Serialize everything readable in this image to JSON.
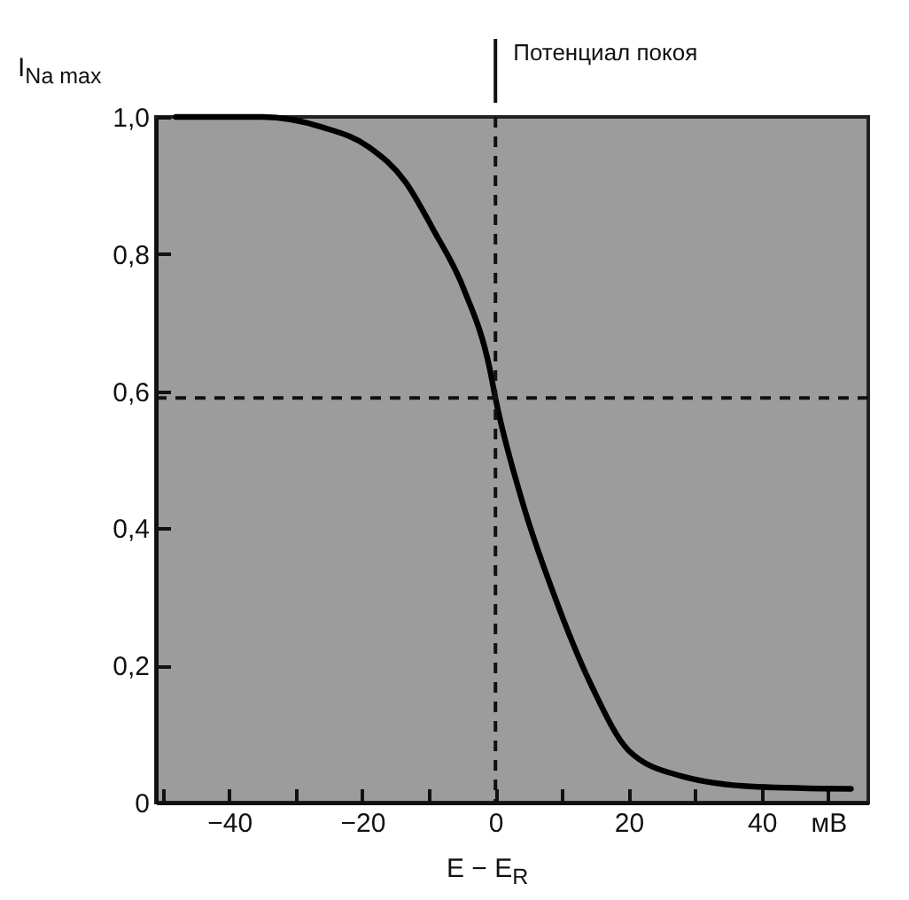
{
  "chart_data": {
    "type": "line",
    "xlabel": "E − E$_{R}$",
    "ylabel": "I$_{Na max}$",
    "x": [
      -48,
      -35,
      -26,
      -19,
      -13.5,
      -9.3,
      -4.8,
      -0.8,
      0,
      4,
      9.3,
      14.6,
      20,
      27.8,
      39.4,
      53.4
    ],
    "series": [
      {
        "color": "#000000",
        "values": [
          1.0,
          1.0,
          0.985,
          0.956,
          0.905,
          0.835,
          0.75,
          0.63,
          0.59,
          0.44,
          0.29,
          0.167,
          0.076,
          0.039,
          0.023,
          0.02
        ]
      }
    ],
    "xlim": [
      -51,
      56
    ],
    "ylim": [
      0,
      1.0
    ],
    "xticks": [
      {
        "value": -50,
        "label": null
      },
      {
        "value": -40,
        "label": "−40"
      },
      {
        "value": -30,
        "label": null
      },
      {
        "value": -20,
        "label": "−20"
      },
      {
        "value": -10,
        "label": null
      },
      0,
      {
        "value": 10,
        "label": null
      },
      20,
      {
        "value": 30,
        "label": null
      },
      40,
      {
        "value": 50,
        "label": "мВ"
      }
    ],
    "yticks": [
      0,
      {
        "value": 0.2,
        "label": "0,2"
      },
      {
        "value": 0.4,
        "label": "0,4"
      },
      {
        "value": 0.6,
        "label": "0,6"
      },
      {
        "value": 0.8,
        "label": "0,8"
      },
      {
        "value": 1.0,
        "label": "1,0"
      }
    ],
    "ref_lines": [
      {
        "axis": "x",
        "value": 0,
        "label": "Потенциал покоя",
        "line_style": "dashed"
      },
      {
        "axis": "y",
        "value": 0.59,
        "line_style": "dashed"
      }
    ],
    "line_style": "solid",
    "marker": "none"
  }
}
